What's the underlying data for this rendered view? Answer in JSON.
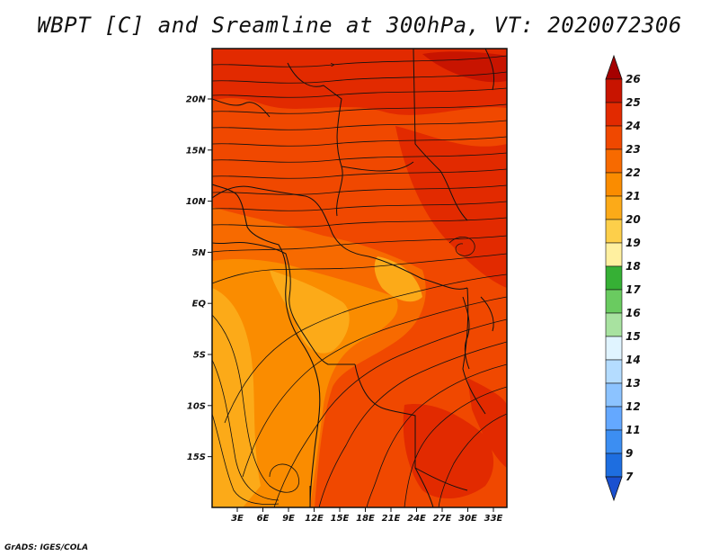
{
  "title": "WBPT [C] and Sreamline at 300hPa, VT: 2020072306",
  "credit": "GrADS: IGES/COLA",
  "map": {
    "lat_ticks": [
      "20N",
      "15N",
      "10N",
      "5N",
      "EQ",
      "5S",
      "10S",
      "15S"
    ],
    "lon_ticks": [
      "3E",
      "6E",
      "9E",
      "12E",
      "15E",
      "18E",
      "21E",
      "24E",
      "27E",
      "30E",
      "33E"
    ],
    "field": "wet-bulb potential temperature",
    "overlay": "streamlines",
    "dominant_flow": "easterly (westward)"
  },
  "colorbar": {
    "labels": [
      "26",
      "25",
      "24",
      "23",
      "22",
      "21",
      "20",
      "19",
      "18",
      "17",
      "16",
      "15",
      "14",
      "13",
      "12",
      "11",
      "9",
      "7"
    ],
    "colors": [
      "#a50000",
      "#c81400",
      "#e22a00",
      "#f04800",
      "#f76a00",
      "#fa8c00",
      "#fcaa18",
      "#fdcf4a",
      "#fff0a0",
      "#36b035",
      "#6acb60",
      "#a8e2a0",
      "#e0f4ff",
      "#b4dcff",
      "#8cc3ff",
      "#64a8ff",
      "#3c8ef2",
      "#1e6ee0",
      "#1a50d0"
    ]
  }
}
